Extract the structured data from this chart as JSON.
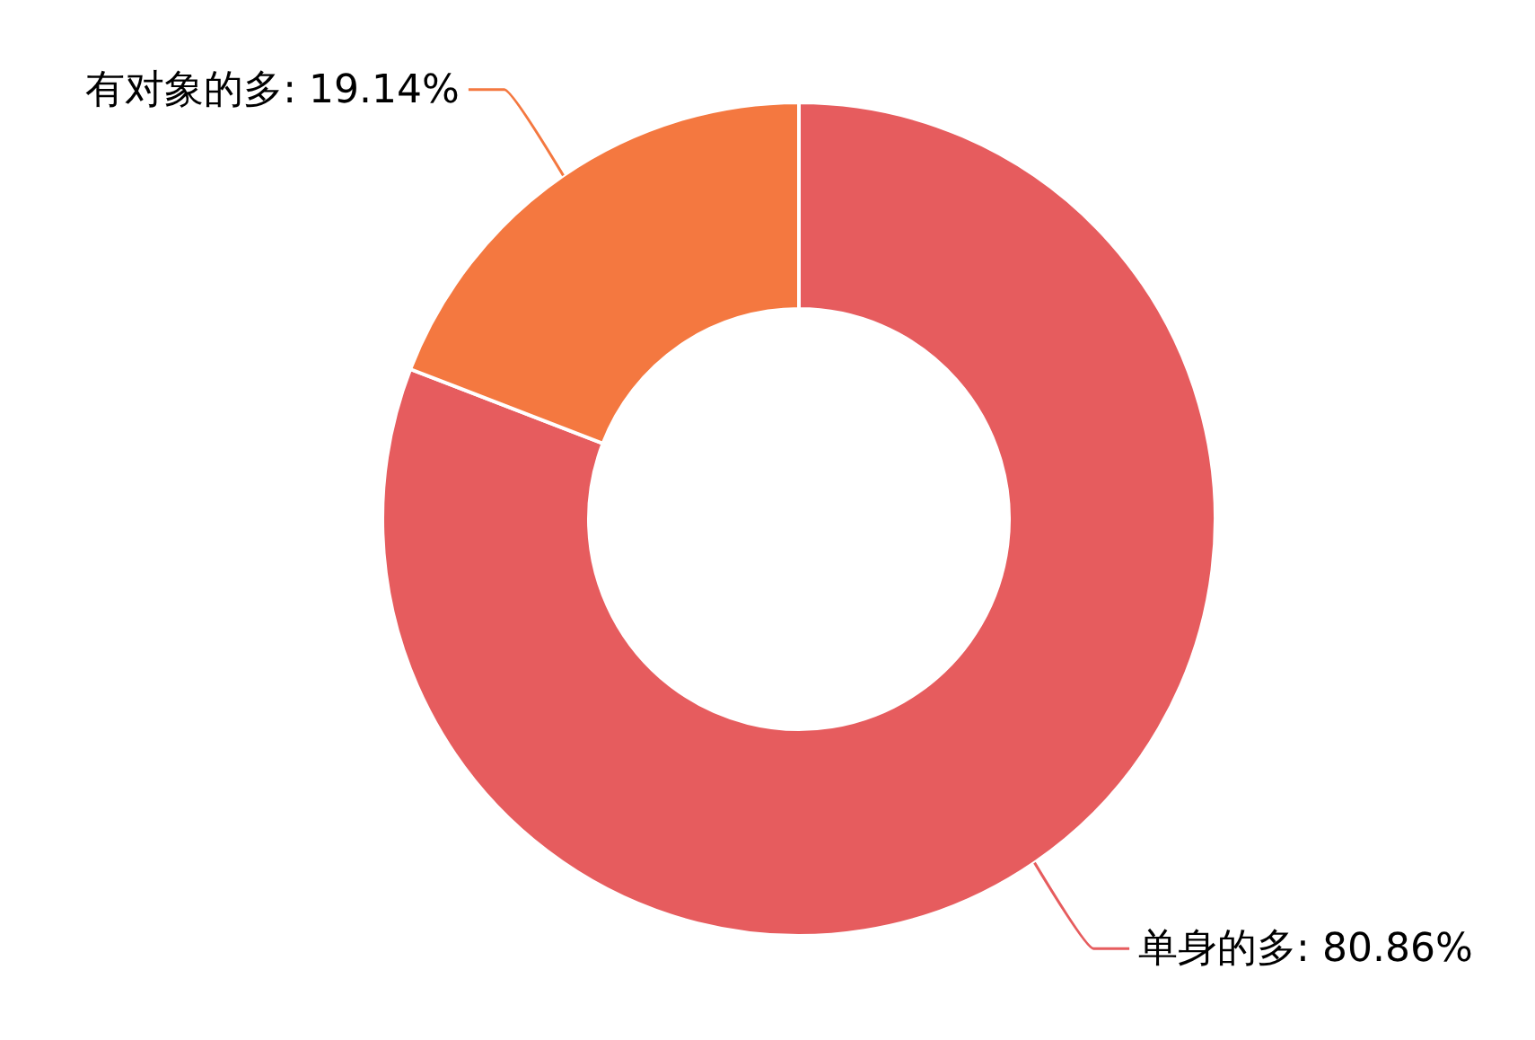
{
  "chart_data": {
    "type": "donut",
    "categories": [
      "单身的多",
      "有对象的多"
    ],
    "values": [
      80.86,
      19.14
    ],
    "colors": [
      "#e65c5e",
      "#f47840"
    ],
    "value_labels": [
      "80.86%",
      "19.14%"
    ]
  }
}
